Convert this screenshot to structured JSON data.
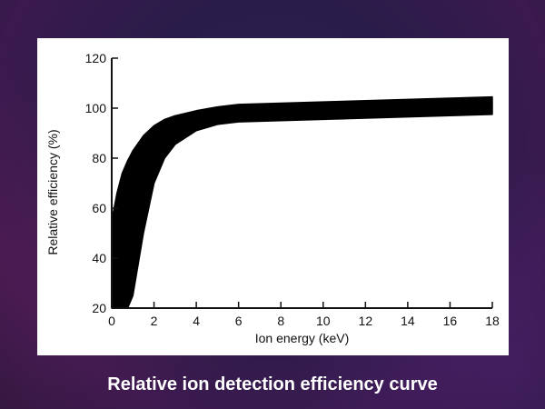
{
  "slide": {
    "caption": "Relative ion detection efficiency curve"
  },
  "colors": {
    "band": "#000000",
    "panel": "#ffffff",
    "caption": "#ffffff"
  },
  "chart_data": {
    "type": "area",
    "title": "",
    "xlabel": "Ion energy (keV)",
    "ylabel": "Relative efficiency (%)",
    "xlim": [
      0,
      18
    ],
    "ylim": [
      20,
      120
    ],
    "xticks": [
      0,
      2,
      4,
      6,
      8,
      10,
      12,
      14,
      16,
      18
    ],
    "yticks": [
      20,
      40,
      60,
      80,
      100,
      120
    ],
    "grid": false,
    "legend": "none",
    "series": [
      {
        "kind": "band",
        "x": [
          0,
          0.25,
          0.5,
          0.75,
          1,
          1.5,
          2,
          2.5,
          3,
          4,
          5,
          6,
          8,
          10,
          12,
          14,
          16,
          18
        ],
        "upper": [
          55,
          66,
          74,
          79,
          83,
          89,
          93,
          95.5,
          97,
          99,
          100.5,
          101.5,
          102,
          102.5,
          103,
          103.5,
          104,
          104.5
        ],
        "lower": [
          20,
          20,
          20,
          20,
          25,
          50,
          70,
          80,
          85.5,
          91,
          93.5,
          94.5,
          95,
          95.5,
          96,
          96.5,
          97,
          97.5
        ]
      }
    ]
  }
}
